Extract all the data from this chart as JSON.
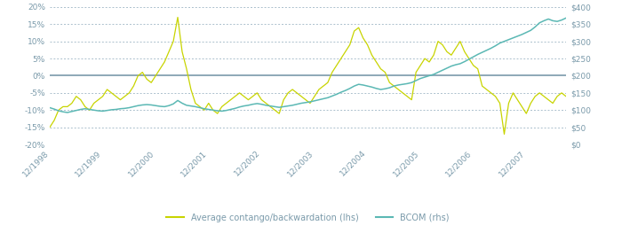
{
  "title": "",
  "lhs_label": "Average contango/backwardation (lhs)",
  "rhs_label": "BCOM (rhs)",
  "lhs_color": "#c8d400",
  "rhs_color": "#5bb8b4",
  "zero_line_color": "#7a9aaa",
  "grid_color": "#aabfcc",
  "background_color": "#ffffff",
  "lhs_ylim": [
    -0.2,
    0.2
  ],
  "rhs_ylim": [
    0,
    400
  ],
  "lhs_yticks": [
    -0.2,
    -0.15,
    -0.1,
    -0.05,
    0.0,
    0.05,
    0.1,
    0.15,
    0.2
  ],
  "rhs_yticks": [
    0,
    50,
    100,
    150,
    200,
    250,
    300,
    350,
    400
  ],
  "tick_label_color": "#7a9aaa",
  "contango_data": [
    -0.15,
    -0.13,
    -0.1,
    -0.09,
    -0.09,
    -0.08,
    -0.06,
    -0.07,
    -0.09,
    -0.1,
    -0.08,
    -0.07,
    -0.06,
    -0.04,
    -0.05,
    -0.06,
    -0.07,
    -0.06,
    -0.05,
    -0.03,
    0.0,
    0.01,
    -0.01,
    -0.02,
    0.0,
    0.02,
    0.04,
    0.07,
    0.1,
    0.17,
    0.07,
    0.02,
    -0.04,
    -0.08,
    -0.09,
    -0.1,
    -0.08,
    -0.1,
    -0.11,
    -0.09,
    -0.08,
    -0.07,
    -0.06,
    -0.05,
    -0.06,
    -0.07,
    -0.06,
    -0.05,
    -0.07,
    -0.08,
    -0.09,
    -0.1,
    -0.11,
    -0.07,
    -0.05,
    -0.04,
    -0.05,
    -0.06,
    -0.07,
    -0.08,
    -0.06,
    -0.04,
    -0.03,
    -0.02,
    0.01,
    0.03,
    0.05,
    0.07,
    0.09,
    0.13,
    0.14,
    0.11,
    0.09,
    0.06,
    0.04,
    0.02,
    0.01,
    -0.02,
    -0.03,
    -0.04,
    -0.05,
    -0.06,
    -0.07,
    0.01,
    0.03,
    0.05,
    0.04,
    0.06,
    0.1,
    0.09,
    0.07,
    0.06,
    0.08,
    0.1,
    0.07,
    0.05,
    0.03,
    0.02,
    -0.03,
    -0.04,
    -0.05,
    -0.06,
    -0.08,
    -0.17,
    -0.08,
    -0.05,
    -0.07,
    -0.09,
    -0.11,
    -0.08,
    -0.06,
    -0.05,
    -0.06,
    -0.07,
    -0.08,
    -0.06,
    -0.05,
    -0.06
  ],
  "bcom_data": [
    107,
    103,
    98,
    95,
    93,
    96,
    99,
    102,
    104,
    102,
    100,
    98,
    97,
    99,
    101,
    102,
    104,
    105,
    107,
    110,
    113,
    115,
    116,
    115,
    113,
    111,
    110,
    113,
    118,
    128,
    120,
    114,
    112,
    110,
    107,
    104,
    102,
    100,
    98,
    97,
    99,
    102,
    105,
    109,
    112,
    114,
    117,
    119,
    117,
    114,
    112,
    110,
    108,
    110,
    112,
    114,
    117,
    120,
    122,
    124,
    127,
    130,
    133,
    136,
    141,
    146,
    152,
    157,
    163,
    170,
    175,
    173,
    170,
    167,
    163,
    160,
    162,
    165,
    170,
    173,
    175,
    177,
    180,
    186,
    192,
    196,
    200,
    204,
    210,
    216,
    222,
    228,
    232,
    235,
    241,
    248,
    255,
    262,
    268,
    274,
    280,
    287,
    295,
    300,
    305,
    310,
    315,
    320,
    326,
    332,
    342,
    354,
    360,
    365,
    360,
    358,
    362,
    368
  ],
  "xtick_positions": [
    0,
    12,
    24,
    36,
    48,
    60,
    72,
    84,
    96,
    108
  ],
  "xtick_labels": [
    "12/1998",
    "12/1999",
    "12/2000",
    "12/2001",
    "12/2002",
    "12/2003",
    "12/2004",
    "12/2005",
    "12/2006",
    "12/2007"
  ]
}
